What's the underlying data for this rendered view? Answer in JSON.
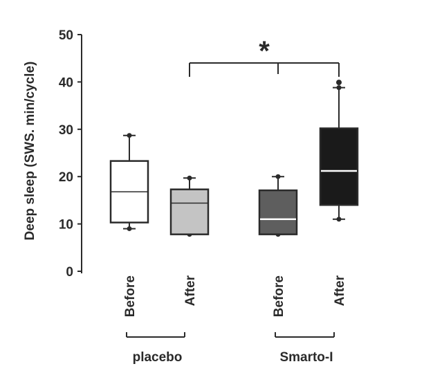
{
  "chart_data": {
    "type": "box",
    "ylabel": "Deep sleep (SWS. min/cycle)",
    "ylim": [
      0,
      50
    ],
    "yticks": [
      0,
      10,
      20,
      30,
      40,
      50
    ],
    "grid": false,
    "groups": [
      {
        "label": "placebo",
        "categories": [
          "Before",
          "After"
        ]
      },
      {
        "label": "Smarto-I",
        "categories": [
          "Before",
          "After"
        ]
      }
    ],
    "boxes": [
      {
        "group": "placebo",
        "category": "Before",
        "whisker_low": 9,
        "q1": 10.3,
        "median": 16.8,
        "q3": 23.3,
        "whisker_high": 28.7,
        "fill": "#ffffff"
      },
      {
        "group": "placebo",
        "category": "After",
        "whisker_low": 7.8,
        "q1": 7.8,
        "median": 14.4,
        "q3": 17.3,
        "whisker_high": 19.7,
        "fill": "#c4c4c4"
      },
      {
        "group": "Smarto-I",
        "category": "Before",
        "whisker_low": 7.8,
        "q1": 7.8,
        "median": 11,
        "q3": 17.1,
        "whisker_high": 20,
        "fill": "#5e5e5e"
      },
      {
        "group": "Smarto-I",
        "category": "After",
        "whisker_low": 11,
        "q1": 14,
        "median": 21.2,
        "q3": 30.2,
        "whisker_high": 38.8,
        "outliers": [
          39.9
        ],
        "fill": "#1a1a1a"
      }
    ],
    "significance": {
      "label": "*"
    }
  }
}
